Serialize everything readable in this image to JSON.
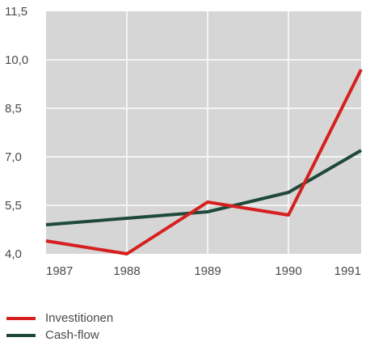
{
  "chart_data": {
    "type": "line",
    "x": [
      "1987",
      "1988",
      "1989",
      "1990",
      "1991"
    ],
    "y_ticks": [
      "4,0",
      "5,5",
      "7,0",
      "8,5",
      "10,0",
      "11,5"
    ],
    "ylim": [
      4.0,
      11.5
    ],
    "grid": true,
    "legend_position": "bottom-left",
    "colors": {
      "plot_bg": "#d6d6d6",
      "grid": "#f4f4f4"
    },
    "series": [
      {
        "name": "Investitionen",
        "color": "#d62020",
        "values": [
          4.4,
          4.0,
          5.6,
          5.2,
          9.7
        ]
      },
      {
        "name": "Cash-flow",
        "color": "#1f4a3a",
        "values": [
          4.9,
          5.1,
          5.3,
          5.9,
          7.2
        ]
      }
    ]
  }
}
